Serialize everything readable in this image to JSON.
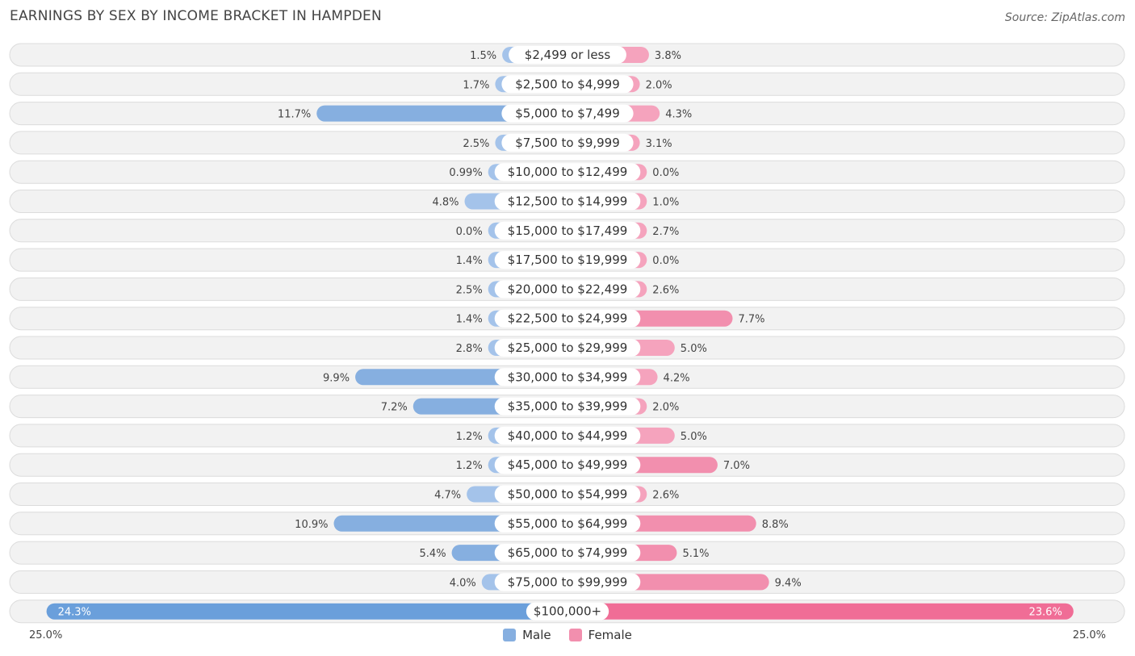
{
  "title": "EARNINGS BY SEX BY INCOME BRACKET IN HAMPDEN",
  "source": "Source: ZipAtlas.com",
  "colors": {
    "male": "#a4c3ea",
    "male_dark": "#86afe0",
    "male_top": "#6a9fdb",
    "female": "#f5a3bd",
    "female_dark": "#f28fae",
    "female_top": "#f06d96"
  },
  "chart_data": {
    "type": "bar",
    "orientation": "diverging-horizontal",
    "title": "EARNINGS BY SEX BY INCOME BRACKET IN HAMPDEN",
    "axis_max": 25.0,
    "axis_left_label": "25.0%",
    "axis_right_label": "25.0%",
    "legend": [
      "Male",
      "Female"
    ],
    "legend_position": "bottom-center",
    "categories": [
      "$2,499 or less",
      "$2,500 to $4,999",
      "$5,000 to $7,499",
      "$7,500 to $9,999",
      "$10,000 to $12,499",
      "$12,500 to $14,999",
      "$15,000 to $17,499",
      "$17,500 to $19,999",
      "$20,000 to $22,499",
      "$22,500 to $24,999",
      "$25,000 to $29,999",
      "$30,000 to $34,999",
      "$35,000 to $39,999",
      "$40,000 to $44,999",
      "$45,000 to $49,999",
      "$50,000 to $54,999",
      "$55,000 to $64,999",
      "$65,000 to $74,999",
      "$75,000 to $99,999",
      "$100,000+"
    ],
    "series": [
      {
        "name": "Male",
        "values": [
          1.5,
          1.7,
          11.7,
          2.5,
          0.99,
          4.8,
          0.0,
          1.4,
          2.5,
          1.4,
          2.8,
          9.9,
          7.2,
          1.2,
          1.2,
          4.7,
          10.9,
          5.4,
          4.0,
          24.3
        ],
        "labels": [
          "1.5%",
          "1.7%",
          "11.7%",
          "2.5%",
          "0.99%",
          "4.8%",
          "0.0%",
          "1.4%",
          "2.5%",
          "1.4%",
          "2.8%",
          "9.9%",
          "7.2%",
          "1.2%",
          "1.2%",
          "4.7%",
          "10.9%",
          "5.4%",
          "4.0%",
          "24.3%"
        ]
      },
      {
        "name": "Female",
        "values": [
          3.8,
          2.0,
          4.3,
          3.1,
          0.0,
          1.0,
          2.7,
          0.0,
          2.6,
          7.7,
          5.0,
          4.2,
          2.0,
          5.0,
          7.0,
          2.6,
          8.8,
          5.1,
          9.4,
          23.6
        ],
        "labels": [
          "3.8%",
          "2.0%",
          "4.3%",
          "3.1%",
          "0.0%",
          "1.0%",
          "2.7%",
          "0.0%",
          "2.6%",
          "7.7%",
          "5.0%",
          "4.2%",
          "2.0%",
          "5.0%",
          "7.0%",
          "2.6%",
          "8.8%",
          "5.1%",
          "9.4%",
          "23.6%"
        ]
      }
    ]
  }
}
